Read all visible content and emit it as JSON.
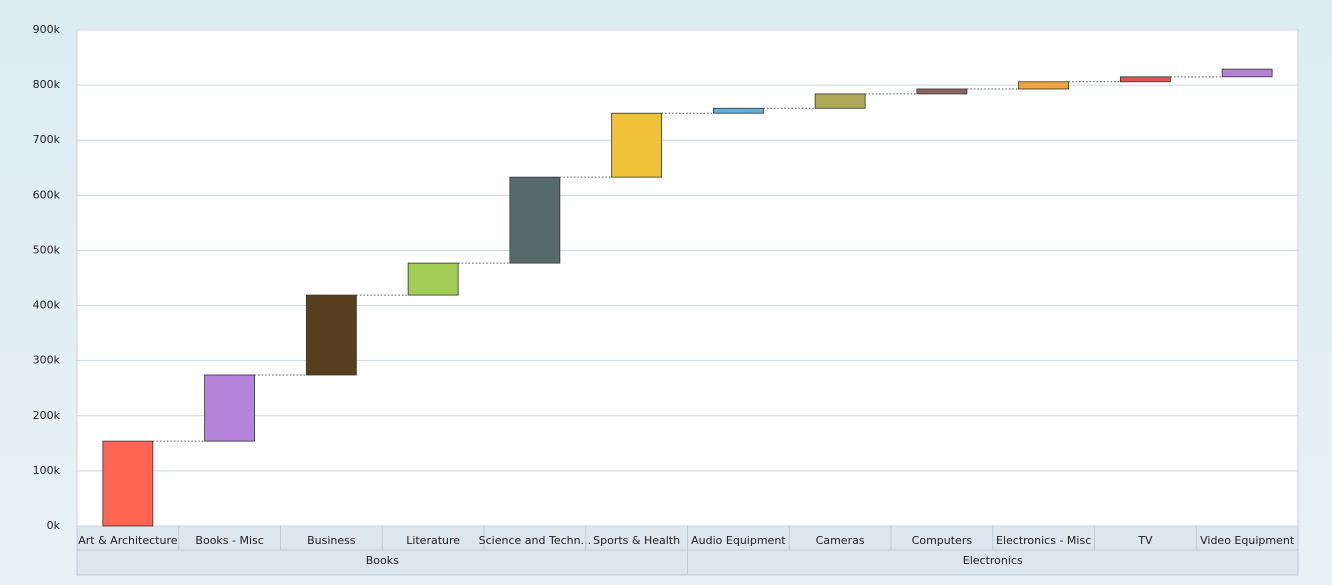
{
  "chart_data": {
    "type": "waterfall",
    "categories": [
      "Art & Architecture",
      "Books - Misc",
      "Business",
      "Literature",
      "Science and Techn...",
      "Sports & Health",
      "Audio Equipment",
      "Cameras",
      "Computers",
      "Electronics - Misc",
      "TV",
      "Video Equipment"
    ],
    "values": [
      154000,
      120000,
      145000,
      58000,
      156000,
      116000,
      9000,
      26000,
      9000,
      13000,
      9000,
      14000
    ],
    "colors": [
      "#ff6352",
      "#b484da",
      "#583f1f",
      "#a1cd56",
      "#566a6a",
      "#f0c238",
      "#68aedd",
      "#afaa58",
      "#8d6463",
      "#f0a23e",
      "#e35350",
      "#b281d4"
    ],
    "groups": [
      {
        "name": "Books",
        "count": 6
      },
      {
        "name": "Electronics",
        "count": 6
      }
    ],
    "ylim": [
      0,
      900000
    ],
    "yticks": [
      {
        "value": 0,
        "label": "0k"
      },
      {
        "value": 100000,
        "label": "100k"
      },
      {
        "value": 200000,
        "label": "200k"
      },
      {
        "value": 300000,
        "label": "300k"
      },
      {
        "value": 400000,
        "label": "400k"
      },
      {
        "value": 500000,
        "label": "500k"
      },
      {
        "value": 600000,
        "label": "600k"
      },
      {
        "value": 700000,
        "label": "700k"
      },
      {
        "value": 800000,
        "label": "800k"
      },
      {
        "value": 900000,
        "label": "900k"
      }
    ],
    "grid": true
  }
}
